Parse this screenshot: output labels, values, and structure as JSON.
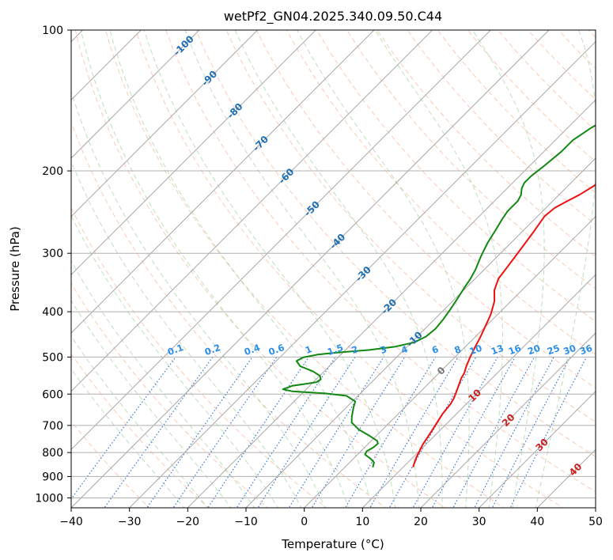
{
  "chart_data": {
    "type": "line",
    "subtype": "skew-t log-p diagram",
    "title": "wetPf2_GN04.2025.340.09.50.C44",
    "xlabel": "Temperature (°C)",
    "ylabel": "Pressure (hPa)",
    "xlim": [
      -40,
      50
    ],
    "ylim": [
      1050,
      100
    ],
    "x_ticks": [
      -40,
      -30,
      -20,
      -10,
      0,
      10,
      20,
      30,
      40,
      50
    ],
    "x_tick_labels": [
      "−40",
      "−30",
      "−20",
      "−10",
      "0",
      "10",
      "20",
      "30",
      "40",
      "50"
    ],
    "y_ticks": [
      100,
      200,
      300,
      400,
      500,
      600,
      700,
      800,
      900,
      1000
    ],
    "y_tick_labels": [
      "100",
      "200",
      "300",
      "400",
      "500",
      "600",
      "700",
      "800",
      "900",
      "1000"
    ],
    "grid": true,
    "colors": {
      "temperature": "#ee1111",
      "dewpoint": "#118811",
      "isotherm": "#a8a8a8",
      "dry_adiabat": "#f4a07a",
      "moist_adiabat": "#88c488",
      "mixing_ratio": "#3377dd",
      "isotherm_label_cold": "#1f6fb4",
      "isotherm_label_warm": "#cc2222",
      "isotherm_label_zero": "#777777",
      "mixing_label": "#2b8fe8",
      "grid": "#b0b0b0"
    },
    "series": [
      {
        "name": "Temperature",
        "points": [
          [
            11.7,
            860
          ],
          [
            10.6,
            820
          ],
          [
            9.5,
            770
          ],
          [
            8.7,
            720
          ],
          [
            7.6,
            660
          ],
          [
            7.3,
            630
          ],
          [
            6.8,
            610
          ],
          [
            5.7,
            580
          ],
          [
            4.7,
            555
          ],
          [
            4.3,
            540
          ],
          [
            3.6,
            525
          ],
          [
            2.6,
            500
          ],
          [
            1.7,
            475
          ],
          [
            1.0,
            455
          ],
          [
            -0.5,
            420
          ],
          [
            -1.2,
            405
          ],
          [
            -2.8,
            380
          ],
          [
            -4.7,
            360
          ],
          [
            -6.0,
            340
          ],
          [
            -6.5,
            320
          ],
          [
            -7.2,
            295
          ],
          [
            -8.0,
            270
          ],
          [
            -8.8,
            250
          ],
          [
            -8.5,
            240
          ],
          [
            -7.5,
            232
          ],
          [
            -6.5,
            225
          ],
          [
            -5.5,
            215
          ],
          [
            -5.3,
            205
          ],
          [
            -4.8,
            195
          ],
          [
            -4.2,
            185
          ],
          [
            -3.5,
            170
          ],
          [
            -2.8,
            160
          ],
          [
            -2.4,
            153
          ],
          [
            -1.0,
            145
          ],
          [
            0.8,
            137
          ],
          [
            3.2,
            128
          ],
          [
            6.0,
            120
          ],
          [
            8.3,
            113
          ],
          [
            10.5,
            107
          ],
          [
            12.2,
            103
          ],
          [
            13.5,
            100
          ]
        ]
      },
      {
        "name": "Dewpoint",
        "points": [
          [
            4.8,
            860
          ],
          [
            4.2,
            840
          ],
          [
            3.0,
            825
          ],
          [
            1.3,
            808
          ],
          [
            1.0,
            795
          ],
          [
            1.5,
            780
          ],
          [
            1.6,
            765
          ],
          [
            1.0,
            755
          ],
          [
            -1.0,
            738
          ],
          [
            -4.0,
            715
          ],
          [
            -6.5,
            690
          ],
          [
            -7.5,
            670
          ],
          [
            -8.8,
            640
          ],
          [
            -9.5,
            622
          ],
          [
            -12.0,
            605
          ],
          [
            -16.0,
            598
          ],
          [
            -22.0,
            592
          ],
          [
            -24.0,
            586
          ],
          [
            -23.0,
            576
          ],
          [
            -19.5,
            566
          ],
          [
            -19.2,
            558
          ],
          [
            -20.0,
            548
          ],
          [
            -22.0,
            536
          ],
          [
            -25.0,
            523
          ],
          [
            -26.5,
            510
          ],
          [
            -26.0,
            501
          ],
          [
            -24.0,
            494
          ],
          [
            -21.0,
            489
          ],
          [
            -16.0,
            483
          ],
          [
            -12.0,
            475
          ],
          [
            -9.5,
            465
          ],
          [
            -8.5,
            452
          ],
          [
            -8.2,
            435
          ],
          [
            -8.5,
            415
          ],
          [
            -9.0,
            395
          ],
          [
            -9.6,
            375
          ],
          [
            -10.3,
            355
          ],
          [
            -10.8,
            340
          ],
          [
            -11.5,
            325
          ],
          [
            -12.8,
            305
          ],
          [
            -14.0,
            285
          ],
          [
            -14.8,
            268
          ],
          [
            -15.5,
            255
          ],
          [
            -16.0,
            244
          ],
          [
            -16.0,
            232
          ],
          [
            -16.5,
            225
          ],
          [
            -17.5,
            218
          ],
          [
            -18.0,
            212
          ],
          [
            -18.0,
            205
          ],
          [
            -17.5,
            195
          ],
          [
            -17.0,
            182
          ],
          [
            -17.0,
            172
          ],
          [
            -16.0,
            162
          ],
          [
            -14.5,
            153
          ],
          [
            -12.5,
            143
          ],
          [
            -10.0,
            133
          ],
          [
            -7.5,
            124
          ],
          [
            -5.5,
            117
          ],
          [
            -3.5,
            111
          ],
          [
            -2.0,
            106
          ],
          [
            -0.5,
            102
          ],
          [
            0.0,
            100
          ]
        ]
      }
    ],
    "isotherm_labels": [
      "-100",
      "-90",
      "-80",
      "-70",
      "-60",
      "-50",
      "-40",
      "-30",
      "-20",
      "-10",
      "0",
      "10",
      "20",
      "30",
      "40"
    ],
    "mixing_ratio_labels": [
      "0.1",
      "0.2",
      "0.4",
      "0.6",
      "1",
      "1.5",
      "2",
      "3",
      "4",
      "6",
      "8",
      "10",
      "13",
      "16",
      "20",
      "25",
      "30",
      "36"
    ]
  }
}
